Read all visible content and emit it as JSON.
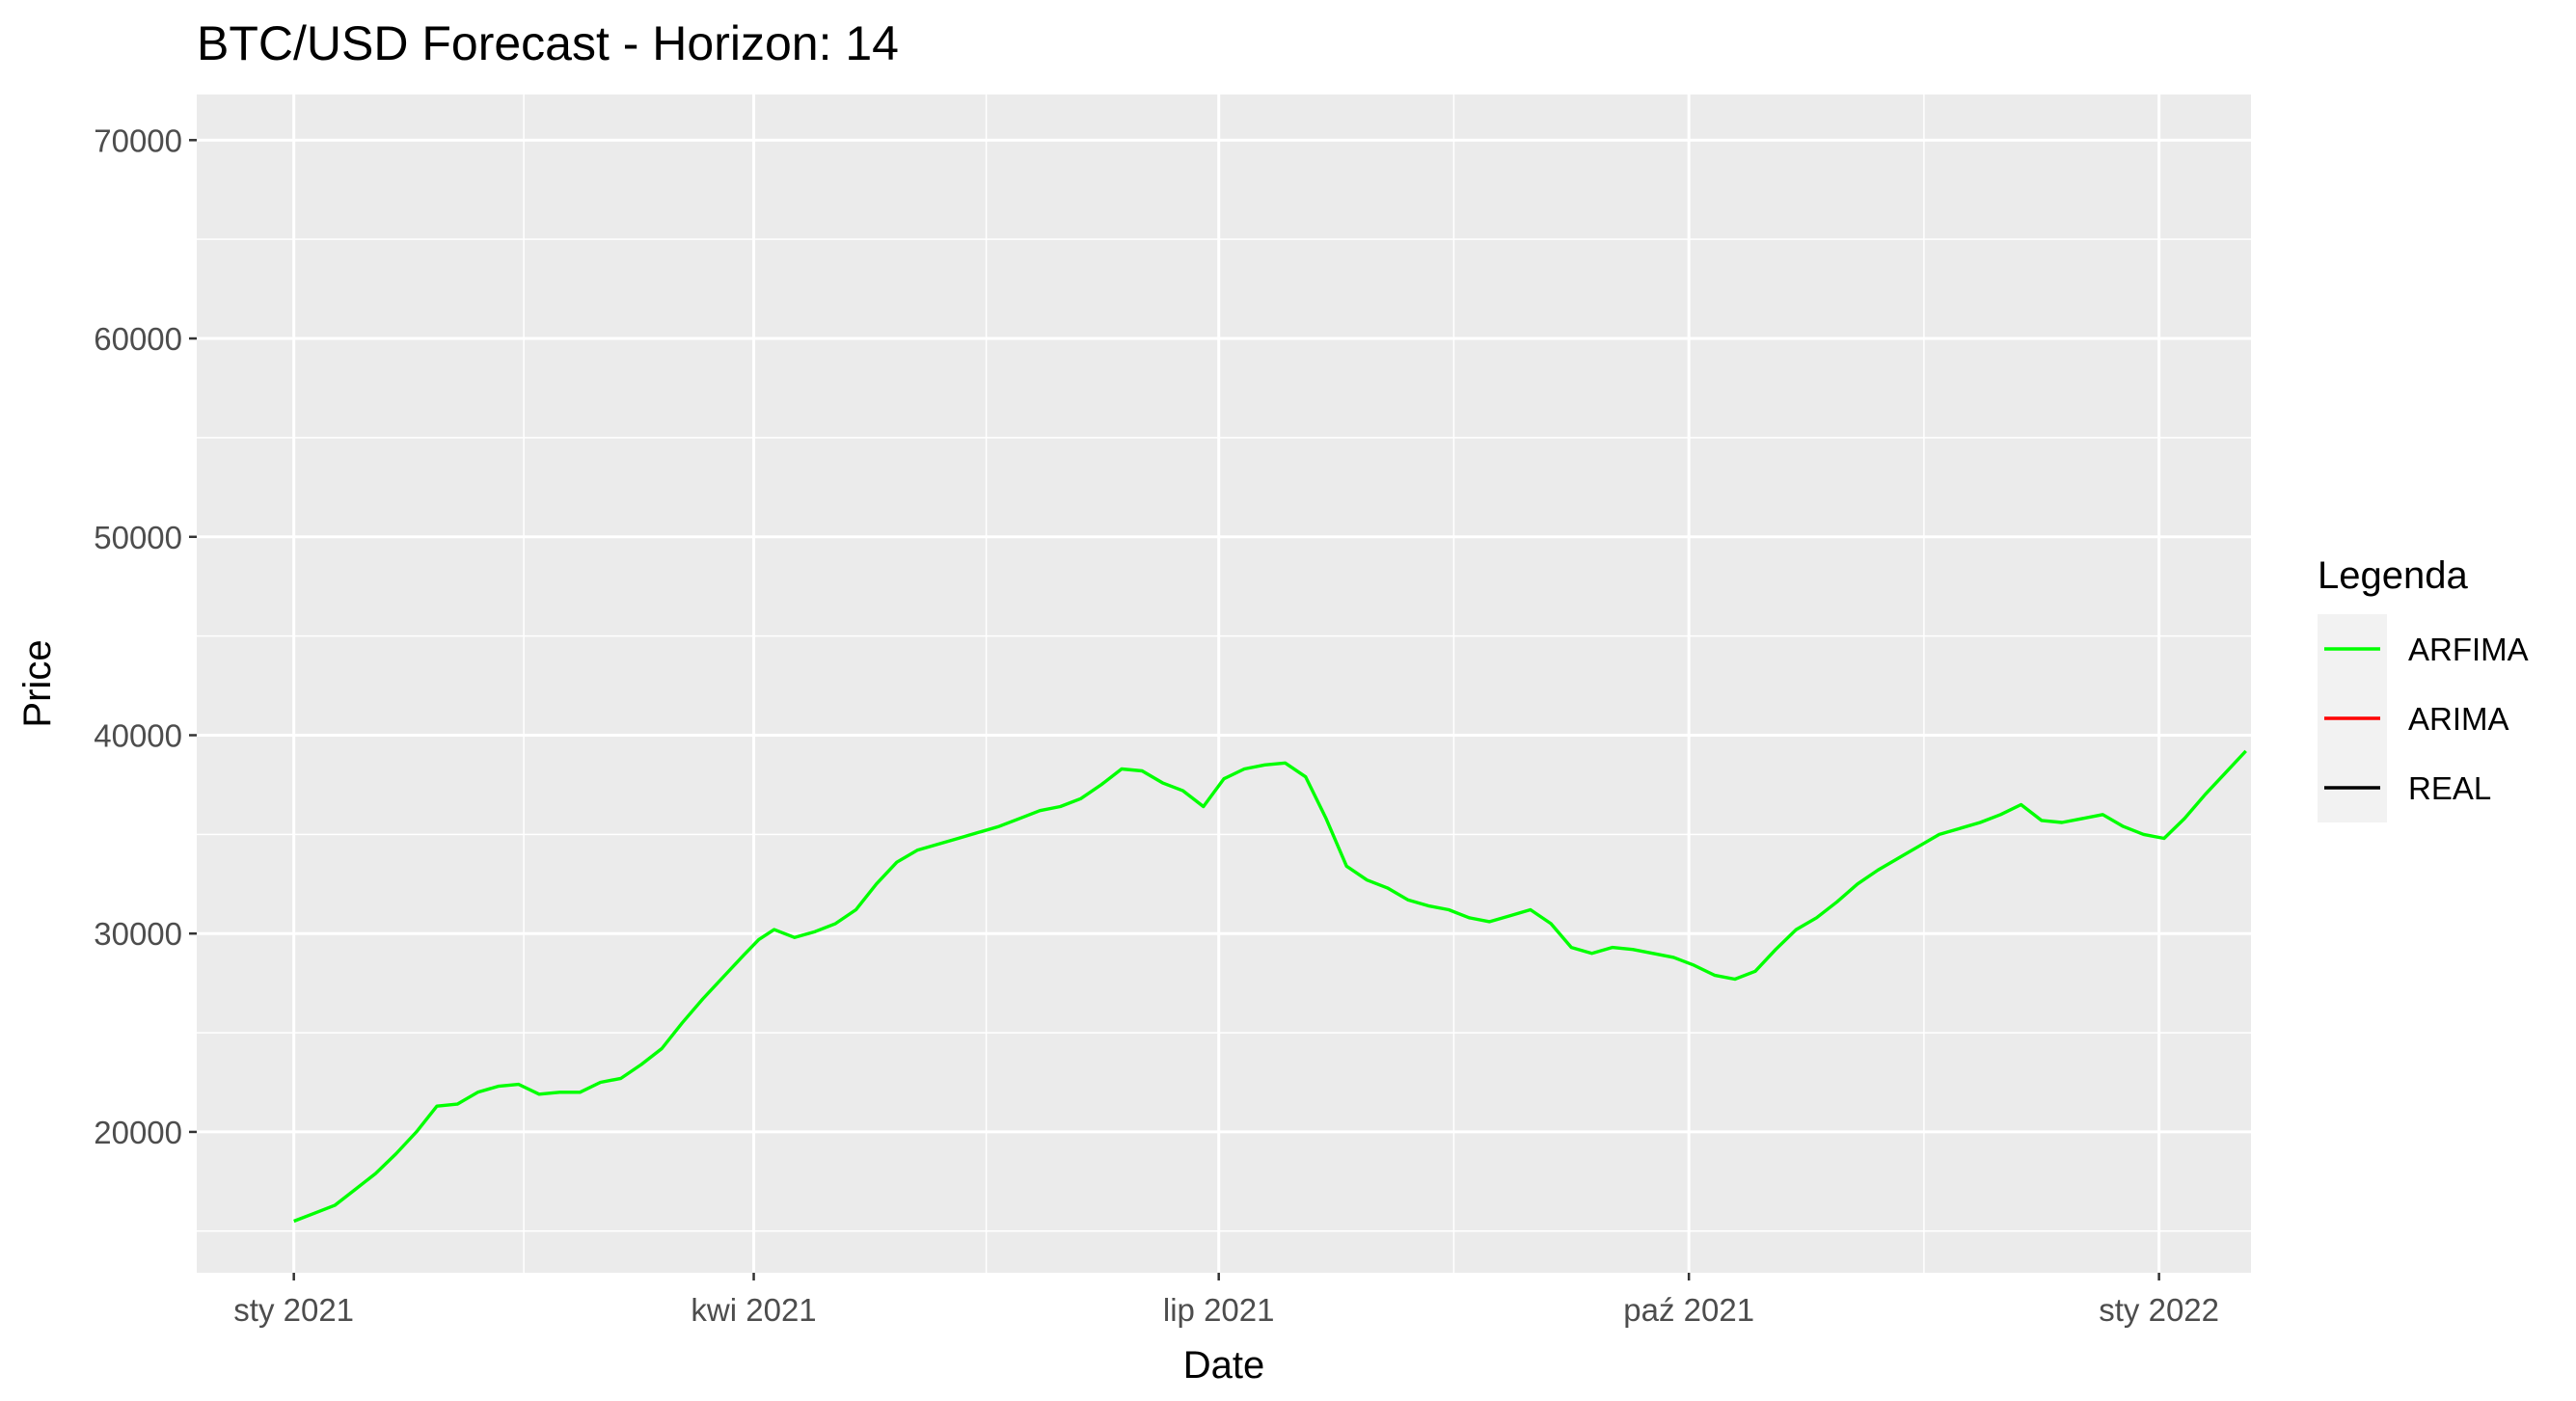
{
  "chart_data": {
    "type": "line",
    "title": "BTC/USD Forecast - Horizon: 14",
    "xlabel": "Date",
    "ylabel": "Price",
    "x_ticks": [
      {
        "date": "2021-01-01",
        "label": "sty 2021"
      },
      {
        "date": "2021-04-01",
        "label": "kwi 2021"
      },
      {
        "date": "2021-07-01",
        "label": "lip 2021"
      },
      {
        "date": "2021-10-01",
        "label": "paź 2021"
      },
      {
        "date": "2022-01-01",
        "label": "sty 2022"
      }
    ],
    "xlim": [
      "2020-12-13",
      "2022-01-19"
    ],
    "y_ticks": [
      20000,
      30000,
      40000,
      50000,
      60000,
      70000
    ],
    "ylim": [
      12900,
      72300
    ],
    "legend": {
      "title": "Legenda",
      "position": "right",
      "entries": [
        {
          "name": "ARFIMA",
          "color": "#00ff00"
        },
        {
          "name": "ARIMA",
          "color": "#ff0000"
        },
        {
          "name": "REAL",
          "color": "#000000"
        }
      ]
    },
    "grid": true,
    "series": [
      {
        "name": "ARFIMA",
        "color": "#00ff00",
        "points": [
          [
            "2021-01-01",
            15500
          ],
          [
            "2021-01-05",
            15900
          ],
          [
            "2021-01-09",
            16300
          ],
          [
            "2021-01-13",
            17100
          ],
          [
            "2021-01-17",
            17900
          ],
          [
            "2021-01-21",
            18900
          ],
          [
            "2021-01-25",
            20000
          ],
          [
            "2021-01-29",
            21300
          ],
          [
            "2021-02-02",
            21400
          ],
          [
            "2021-02-06",
            22000
          ],
          [
            "2021-02-10",
            22300
          ],
          [
            "2021-02-14",
            22400
          ],
          [
            "2021-02-18",
            21900
          ],
          [
            "2021-02-22",
            22000
          ],
          [
            "2021-02-26",
            22000
          ],
          [
            "2021-03-02",
            22500
          ],
          [
            "2021-03-06",
            22700
          ],
          [
            "2021-03-10",
            23400
          ],
          [
            "2021-03-14",
            24200
          ],
          [
            "2021-03-18",
            25500
          ],
          [
            "2021-03-22",
            26700
          ],
          [
            "2021-03-26",
            27800
          ],
          [
            "2021-03-30",
            28900
          ],
          [
            "2021-04-02",
            29700
          ],
          [
            "2021-04-05",
            30200
          ],
          [
            "2021-04-09",
            29800
          ],
          [
            "2021-04-13",
            30100
          ],
          [
            "2021-04-17",
            30500
          ],
          [
            "2021-04-21",
            31200
          ],
          [
            "2021-04-25",
            32500
          ],
          [
            "2021-04-29",
            33600
          ],
          [
            "2021-05-03",
            34200
          ],
          [
            "2021-05-07",
            34500
          ],
          [
            "2021-05-11",
            34800
          ],
          [
            "2021-05-15",
            35100
          ],
          [
            "2021-05-19",
            35400
          ],
          [
            "2021-05-23",
            35800
          ],
          [
            "2021-05-27",
            36200
          ],
          [
            "2021-05-31",
            36400
          ],
          [
            "2021-06-04",
            36800
          ],
          [
            "2021-06-08",
            37500
          ],
          [
            "2021-06-12",
            38300
          ],
          [
            "2021-06-16",
            38200
          ],
          [
            "2021-06-20",
            37600
          ],
          [
            "2021-06-24",
            37200
          ],
          [
            "2021-06-28",
            36400
          ],
          [
            "2021-07-02",
            37800
          ],
          [
            "2021-07-06",
            38300
          ],
          [
            "2021-07-10",
            38500
          ],
          [
            "2021-07-14",
            38600
          ],
          [
            "2021-07-18",
            37900
          ],
          [
            "2021-07-22",
            35800
          ],
          [
            "2021-07-26",
            33400
          ],
          [
            "2021-07-30",
            32700
          ],
          [
            "2021-08-03",
            32300
          ],
          [
            "2021-08-07",
            31700
          ],
          [
            "2021-08-11",
            31400
          ],
          [
            "2021-08-15",
            31200
          ],
          [
            "2021-08-19",
            30800
          ],
          [
            "2021-08-23",
            30600
          ],
          [
            "2021-08-27",
            30900
          ],
          [
            "2021-08-31",
            31200
          ],
          [
            "2021-09-04",
            30500
          ],
          [
            "2021-09-08",
            29300
          ],
          [
            "2021-09-12",
            29000
          ],
          [
            "2021-09-16",
            29300
          ],
          [
            "2021-09-20",
            29200
          ],
          [
            "2021-09-24",
            29000
          ],
          [
            "2021-09-28",
            28800
          ],
          [
            "2021-10-02",
            28400
          ],
          [
            "2021-10-06",
            27900
          ],
          [
            "2021-10-10",
            27700
          ],
          [
            "2021-10-14",
            28100
          ],
          [
            "2021-10-18",
            29200
          ],
          [
            "2021-10-22",
            30200
          ],
          [
            "2021-10-26",
            30800
          ],
          [
            "2021-10-30",
            31600
          ],
          [
            "2021-11-03",
            32500
          ],
          [
            "2021-11-07",
            33200
          ],
          [
            "2021-11-11",
            33800
          ],
          [
            "2021-11-15",
            34400
          ],
          [
            "2021-11-19",
            35000
          ],
          [
            "2021-11-23",
            35300
          ],
          [
            "2021-11-27",
            35600
          ],
          [
            "2021-12-01",
            36000
          ],
          [
            "2021-12-05",
            36500
          ],
          [
            "2021-12-09",
            35700
          ],
          [
            "2021-12-13",
            35600
          ],
          [
            "2021-12-17",
            35800
          ],
          [
            "2021-12-21",
            36000
          ],
          [
            "2021-12-25",
            35400
          ],
          [
            "2021-12-29",
            35000
          ],
          [
            "2022-01-02",
            34800
          ],
          [
            "2022-01-06",
            35800
          ],
          [
            "2022-01-10",
            37000
          ],
          [
            "2022-01-14",
            38100
          ],
          [
            "2022-01-18",
            39200
          ]
        ]
      }
    ]
  }
}
